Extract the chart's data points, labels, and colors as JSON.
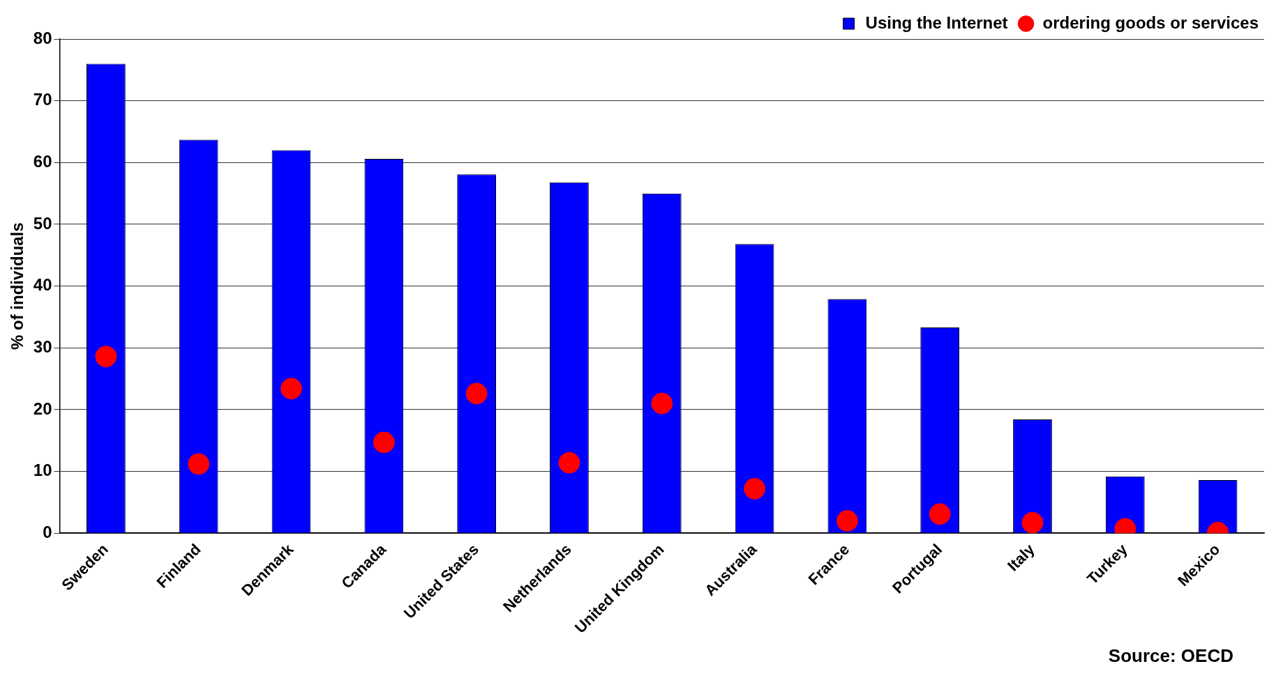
{
  "chart_data": {
    "type": "bar",
    "ylabel": "% of individuals",
    "categories": [
      "Sweden",
      "Finland",
      "Denmark",
      "Canada",
      "United States",
      "Netherlands",
      "United Kingdom",
      "Australia",
      "France",
      "Portugal",
      "Italy",
      "Turkey",
      "Mexico"
    ],
    "series": [
      {
        "name": "Using the Internet",
        "color": "#0000ff",
        "values": [
          76,
          63.7,
          62,
          60.6,
          58.1,
          56.8,
          55,
          46.8,
          37.9,
          33.3,
          18.4,
          9.2,
          8.6
        ]
      },
      {
        "name": "ordering goods or services",
        "type": "scatter",
        "color": "#ff0000",
        "marker": "circle",
        "x": [
          "Sweden",
          "Finland",
          "Denmark",
          "Canada",
          "United States",
          "Netherlands",
          "United Kingdom",
          "Australia",
          "France",
          "Portugal",
          "Italy",
          "Turkey",
          "Mexico"
        ],
        "values": [
          28.6,
          11.2,
          23.4,
          14.7,
          22.6,
          11.4,
          21,
          7.2,
          2,
          3.1,
          1.7,
          0.7,
          0.1
        ]
      }
    ],
    "ylim": [
      0,
      80
    ],
    "yticks": [
      0,
      10,
      20,
      30,
      40,
      50,
      60,
      70,
      80
    ],
    "grid": "y",
    "legend": "top right",
    "annotations": [
      "Source: OECD"
    ]
  }
}
